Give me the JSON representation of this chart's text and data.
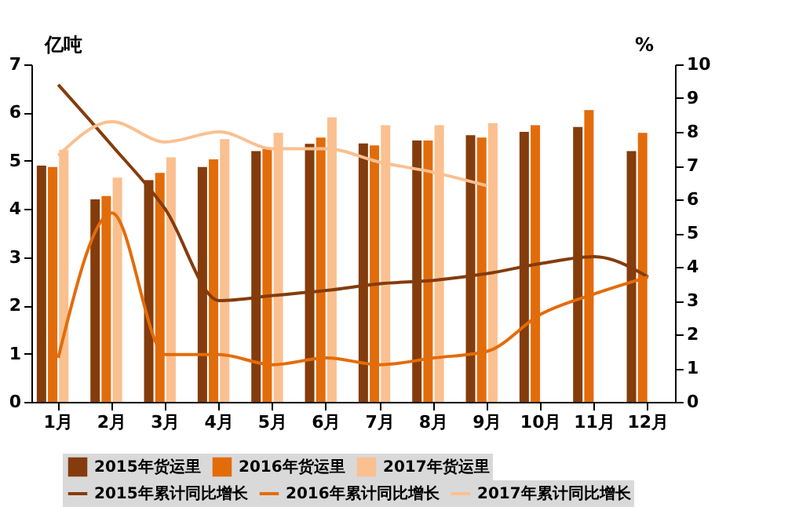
{
  "chart_data": {
    "type": "bar",
    "ylabel": "亿吨",
    "y2label": "%",
    "categories": [
      "1月",
      "2月",
      "3月",
      "4月",
      "5月",
      "6月",
      "7月",
      "8月",
      "9月",
      "10月",
      "11月",
      "12月"
    ],
    "series": [
      {
        "name": "2015年货运里",
        "color": "#843c0c",
        "values": [
          4.9,
          4.2,
          4.6,
          4.87,
          5.2,
          5.35,
          5.36,
          5.42,
          5.53,
          5.6,
          5.7,
          5.2
        ]
      },
      {
        "name": "2016年货运里",
        "color": "#e36c0a",
        "values": [
          4.87,
          4.27,
          4.75,
          5.03,
          5.25,
          5.48,
          5.32,
          5.42,
          5.48,
          5.74,
          6.05,
          5.58
        ]
      },
      {
        "name": "2017年货运里",
        "color": "#fac090",
        "values": [
          5.23,
          4.65,
          5.07,
          5.45,
          5.58,
          5.9,
          5.74,
          5.74,
          5.78,
          null,
          null,
          null
        ]
      },
      {
        "name": "2015年累计同比增长",
        "type": "line",
        "axis": "y2",
        "color": "#843c0c",
        "values": [
          9.4,
          7.6,
          5.7,
          3.0,
          3.15,
          3.3,
          3.5,
          3.6,
          3.8,
          4.1,
          4.3,
          3.7
        ]
      },
      {
        "name": "2016年累计同比增长",
        "type": "line",
        "axis": "y2",
        "color": "#e36c0a",
        "values": [
          1.3,
          5.6,
          1.4,
          1.4,
          1.1,
          1.3,
          1.1,
          1.3,
          1.5,
          2.6,
          3.2,
          3.7
        ]
      },
      {
        "name": "2017年累计同比增长",
        "type": "line",
        "axis": "y2",
        "color": "#fac090",
        "values": [
          7.3,
          8.3,
          7.7,
          8.0,
          7.5,
          7.5,
          7.1,
          6.8,
          6.4,
          null,
          null,
          null
        ]
      }
    ],
    "ylim": [
      0,
      7
    ],
    "yticks": [
      0,
      1,
      2,
      3,
      4,
      5,
      6,
      7
    ],
    "y2lim": [
      0,
      10
    ],
    "y2ticks": [
      0,
      1,
      2,
      3,
      4,
      5,
      6,
      7,
      8,
      9,
      10
    ],
    "grid": false,
    "legend": "bottom",
    "line_style": "solid",
    "marker": "none"
  }
}
